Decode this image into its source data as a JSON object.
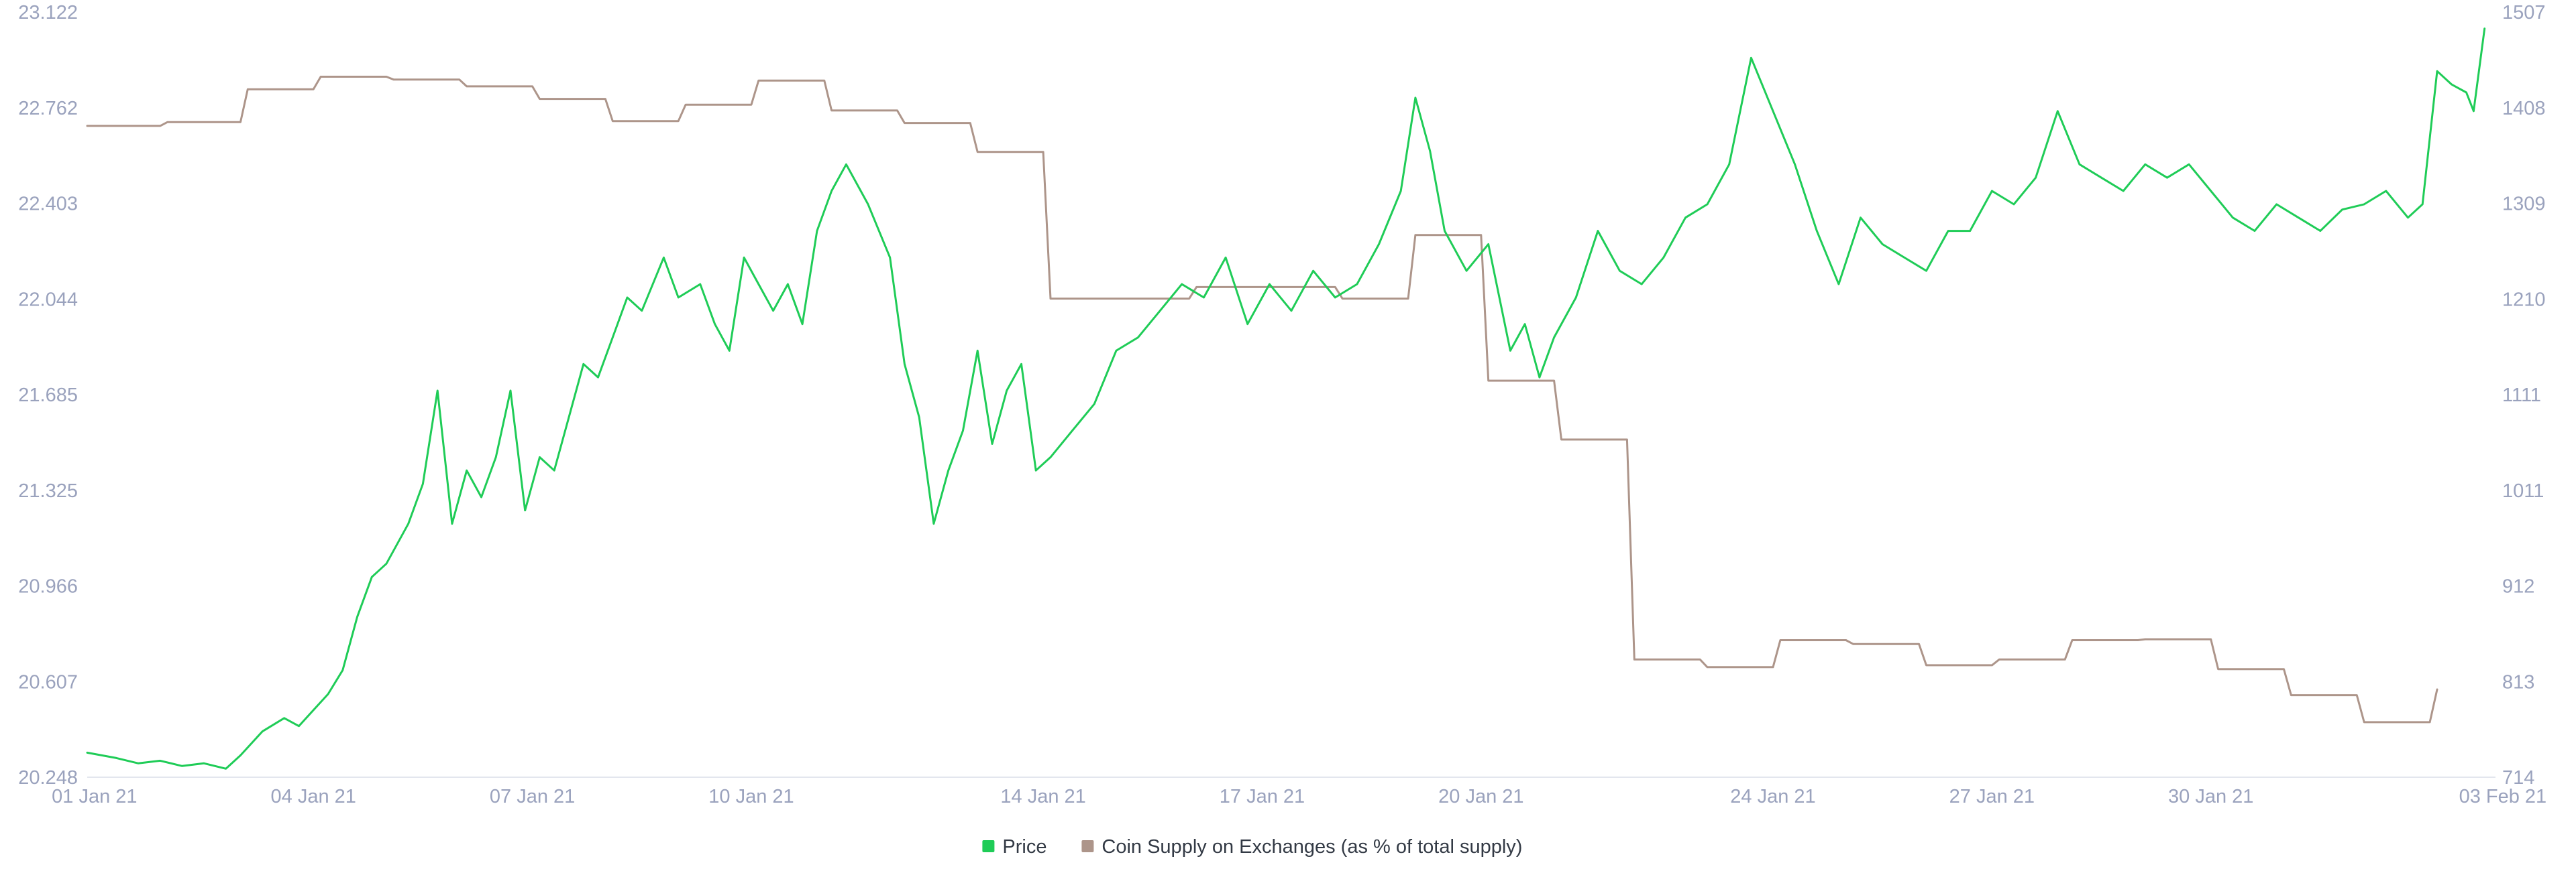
{
  "chart_data": {
    "type": "line",
    "x_axis": {
      "tick_labels": [
        "01 Jan 21",
        "04 Jan 21",
        "07 Jan 21",
        "10 Jan 21",
        "14 Jan 21",
        "17 Jan 21",
        "20 Jan 21",
        "24 Jan 21",
        "27 Jan 21",
        "30 Jan 21",
        "03 Feb 21"
      ],
      "tick_days": [
        1,
        4,
        7,
        10,
        14,
        17,
        20,
        24,
        27,
        30,
        34
      ],
      "range_days": [
        0.9,
        33.9
      ]
    },
    "y_left": {
      "tick_labels": [
        "20.248",
        "20.607",
        "20.966",
        "21.325",
        "21.685",
        "22.044",
        "22.403",
        "22.762",
        "23.122"
      ],
      "range": [
        20.248,
        23.122
      ]
    },
    "y_right": {
      "tick_labels": [
        "714",
        "813",
        "912",
        "1011",
        "1111",
        "1210",
        "1309",
        "1408",
        "1507"
      ],
      "range": [
        714,
        1507
      ]
    },
    "grid": false,
    "legend": {
      "position": "bottom-center",
      "items": [
        {
          "label": "Price",
          "color": "#1fcc57"
        },
        {
          "label": "Coin Supply on Exchanges (as % of total supply)",
          "color": "#ad958a"
        }
      ]
    },
    "series": [
      {
        "name": "Price",
        "axis": "left",
        "color": "#1fcc57",
        "points": [
          [
            0.9,
            20.34
          ],
          [
            1.3,
            20.32
          ],
          [
            1.6,
            20.3
          ],
          [
            1.9,
            20.31
          ],
          [
            2.2,
            20.29
          ],
          [
            2.5,
            20.3
          ],
          [
            2.8,
            20.28
          ],
          [
            3.0,
            20.33
          ],
          [
            3.3,
            20.42
          ],
          [
            3.6,
            20.47
          ],
          [
            3.8,
            20.44
          ],
          [
            4.0,
            20.5
          ],
          [
            4.2,
            20.56
          ],
          [
            4.4,
            20.65
          ],
          [
            4.6,
            20.85
          ],
          [
            4.8,
            21.0
          ],
          [
            5.0,
            21.05
          ],
          [
            5.3,
            21.2
          ],
          [
            5.5,
            21.35
          ],
          [
            5.7,
            21.7
          ],
          [
            5.9,
            21.2
          ],
          [
            6.1,
            21.4
          ],
          [
            6.3,
            21.3
          ],
          [
            6.5,
            21.45
          ],
          [
            6.7,
            21.7
          ],
          [
            6.9,
            21.25
          ],
          [
            7.1,
            21.45
          ],
          [
            7.3,
            21.4
          ],
          [
            7.5,
            21.6
          ],
          [
            7.7,
            21.8
          ],
          [
            7.9,
            21.75
          ],
          [
            8.1,
            21.9
          ],
          [
            8.3,
            22.05
          ],
          [
            8.5,
            22.0
          ],
          [
            8.8,
            22.2
          ],
          [
            9.0,
            22.05
          ],
          [
            9.3,
            22.1
          ],
          [
            9.5,
            21.95
          ],
          [
            9.7,
            21.85
          ],
          [
            9.9,
            22.2
          ],
          [
            10.1,
            22.1
          ],
          [
            10.3,
            22.0
          ],
          [
            10.5,
            22.1
          ],
          [
            10.7,
            21.95
          ],
          [
            10.9,
            22.3
          ],
          [
            11.1,
            22.45
          ],
          [
            11.3,
            22.55
          ],
          [
            11.6,
            22.4
          ],
          [
            11.9,
            22.2
          ],
          [
            12.1,
            21.8
          ],
          [
            12.3,
            21.6
          ],
          [
            12.5,
            21.2
          ],
          [
            12.7,
            21.4
          ],
          [
            12.9,
            21.55
          ],
          [
            13.1,
            21.85
          ],
          [
            13.3,
            21.5
          ],
          [
            13.5,
            21.7
          ],
          [
            13.7,
            21.8
          ],
          [
            13.9,
            21.4
          ],
          [
            14.1,
            21.45
          ],
          [
            14.4,
            21.55
          ],
          [
            14.7,
            21.65
          ],
          [
            15.0,
            21.85
          ],
          [
            15.3,
            21.9
          ],
          [
            15.6,
            22.0
          ],
          [
            15.9,
            22.1
          ],
          [
            16.2,
            22.05
          ],
          [
            16.5,
            22.2
          ],
          [
            16.8,
            21.95
          ],
          [
            17.1,
            22.1
          ],
          [
            17.4,
            22.0
          ],
          [
            17.7,
            22.15
          ],
          [
            18.0,
            22.05
          ],
          [
            18.3,
            22.1
          ],
          [
            18.6,
            22.25
          ],
          [
            18.9,
            22.45
          ],
          [
            19.1,
            22.8
          ],
          [
            19.3,
            22.6
          ],
          [
            19.5,
            22.3
          ],
          [
            19.8,
            22.15
          ],
          [
            20.1,
            22.25
          ],
          [
            20.4,
            21.85
          ],
          [
            20.6,
            21.95
          ],
          [
            20.8,
            21.75
          ],
          [
            21.0,
            21.9
          ],
          [
            21.3,
            22.05
          ],
          [
            21.6,
            22.3
          ],
          [
            21.9,
            22.15
          ],
          [
            22.2,
            22.1
          ],
          [
            22.5,
            22.2
          ],
          [
            22.8,
            22.35
          ],
          [
            23.1,
            22.4
          ],
          [
            23.4,
            22.55
          ],
          [
            23.7,
            22.95
          ],
          [
            24.0,
            22.75
          ],
          [
            24.3,
            22.55
          ],
          [
            24.6,
            22.3
          ],
          [
            24.9,
            22.1
          ],
          [
            25.2,
            22.35
          ],
          [
            25.5,
            22.25
          ],
          [
            25.8,
            22.2
          ],
          [
            26.1,
            22.15
          ],
          [
            26.4,
            22.3
          ],
          [
            26.7,
            22.3
          ],
          [
            27.0,
            22.45
          ],
          [
            27.3,
            22.4
          ],
          [
            27.6,
            22.5
          ],
          [
            27.9,
            22.75
          ],
          [
            28.2,
            22.55
          ],
          [
            28.5,
            22.5
          ],
          [
            28.8,
            22.45
          ],
          [
            29.1,
            22.55
          ],
          [
            29.4,
            22.5
          ],
          [
            29.7,
            22.55
          ],
          [
            30.0,
            22.45
          ],
          [
            30.3,
            22.35
          ],
          [
            30.6,
            22.3
          ],
          [
            30.9,
            22.4
          ],
          [
            31.2,
            22.35
          ],
          [
            31.5,
            22.3
          ],
          [
            31.8,
            22.38
          ],
          [
            32.1,
            22.4
          ],
          [
            32.4,
            22.45
          ],
          [
            32.7,
            22.35
          ],
          [
            32.9,
            22.4
          ],
          [
            33.1,
            22.9
          ],
          [
            33.3,
            22.85
          ],
          [
            33.5,
            22.82
          ],
          [
            33.6,
            22.75
          ],
          [
            33.75,
            23.06
          ]
        ]
      },
      {
        "name": "Coin Supply on Exchanges (as % of total supply)",
        "axis": "right",
        "color": "#ad958a",
        "points": [
          [
            0.9,
            1389
          ],
          [
            1.9,
            1389
          ],
          [
            2.0,
            1393
          ],
          [
            3.0,
            1393
          ],
          [
            3.1,
            1427
          ],
          [
            4.0,
            1427
          ],
          [
            4.1,
            1440
          ],
          [
            5.0,
            1440
          ],
          [
            5.1,
            1437
          ],
          [
            6.0,
            1437
          ],
          [
            6.1,
            1430
          ],
          [
            7.0,
            1430
          ],
          [
            7.1,
            1417
          ],
          [
            8.0,
            1417
          ],
          [
            8.1,
            1394
          ],
          [
            9.0,
            1394
          ],
          [
            9.1,
            1411
          ],
          [
            10.0,
            1411
          ],
          [
            10.1,
            1436
          ],
          [
            11.0,
            1436
          ],
          [
            11.1,
            1405
          ],
          [
            12.0,
            1405
          ],
          [
            12.1,
            1392
          ],
          [
            13.0,
            1392
          ],
          [
            13.1,
            1362
          ],
          [
            14.0,
            1362
          ],
          [
            14.1,
            1210
          ],
          [
            16.0,
            1210
          ],
          [
            16.1,
            1222
          ],
          [
            18.0,
            1222
          ],
          [
            18.1,
            1210
          ],
          [
            19.0,
            1210
          ],
          [
            19.1,
            1276
          ],
          [
            20.0,
            1276
          ],
          [
            20.1,
            1125
          ],
          [
            21.0,
            1125
          ],
          [
            21.1,
            1064
          ],
          [
            22.0,
            1064
          ],
          [
            22.1,
            836
          ],
          [
            23.0,
            836
          ],
          [
            23.1,
            828
          ],
          [
            24.0,
            828
          ],
          [
            24.1,
            856
          ],
          [
            25.0,
            856
          ],
          [
            25.1,
            852
          ],
          [
            26.0,
            852
          ],
          [
            26.1,
            830
          ],
          [
            27.0,
            830
          ],
          [
            27.1,
            836
          ],
          [
            28.0,
            836
          ],
          [
            28.1,
            856
          ],
          [
            29.0,
            856
          ],
          [
            29.1,
            857
          ],
          [
            30.0,
            857
          ],
          [
            30.1,
            826
          ],
          [
            31.0,
            826
          ],
          [
            31.1,
            799
          ],
          [
            32.0,
            799
          ],
          [
            32.1,
            771
          ],
          [
            33.0,
            771
          ],
          [
            33.1,
            805
          ]
        ]
      }
    ]
  }
}
